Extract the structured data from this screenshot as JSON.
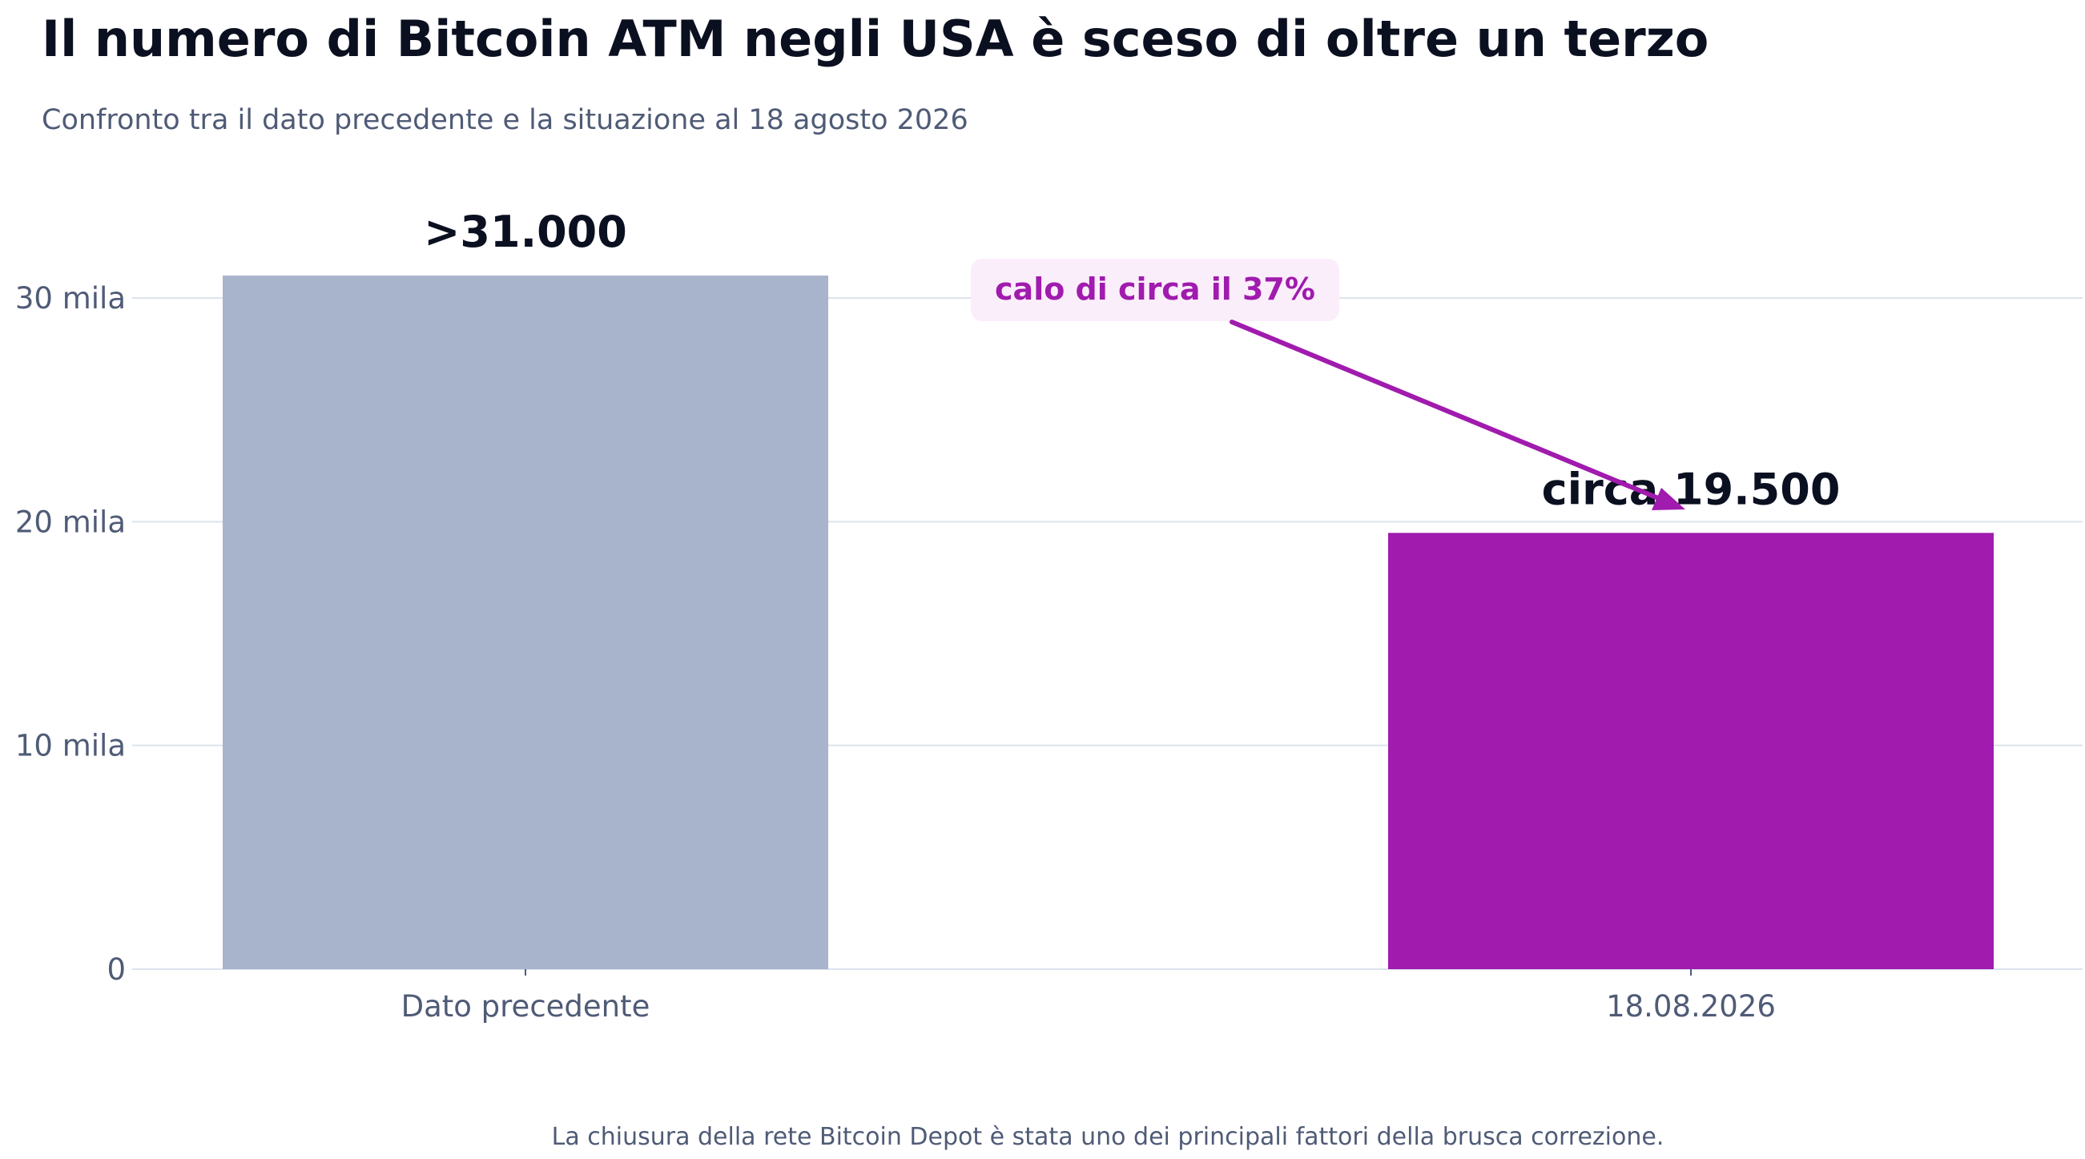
{
  "header": {
    "title": "Il numero di Bitcoin ATM negli USA è sceso di oltre un terzo",
    "subtitle": "Confronto tra il dato precedente e la situazione al 18 agosto 2026"
  },
  "footnote": "La chiusura della rete Bitcoin Depot è stata uno dei principali fattori della brusca correzione.",
  "colors": {
    "previous_bar": "#a8b4cc",
    "current_bar": "#a01bae",
    "annotation_bg": "#fbeefb",
    "annotation": "#a01bae"
  },
  "chart_data": {
    "type": "bar",
    "categories": [
      "Dato precedente",
      "18.08.2026"
    ],
    "values": [
      31000,
      19500
    ],
    "data_labels": [
      ">31.000",
      "circa 19.500"
    ],
    "title": "Il numero di Bitcoin ATM negli USA è sceso di oltre un terzo",
    "subtitle": "Confronto tra il dato precedente e la situazione al 18 agosto 2026",
    "xlabel": "",
    "ylabel": "",
    "ylim": [
      0,
      30000
    ],
    "y_ticks": [
      {
        "value": 0,
        "label": "0"
      },
      {
        "value": 10000,
        "label": "10 mila"
      },
      {
        "value": 20000,
        "label": "20 mila"
      },
      {
        "value": 30000,
        "label": "30 mila"
      }
    ],
    "grid": true,
    "annotation": {
      "text": "calo di circa il 37%",
      "points_to": "18.08.2026"
    }
  }
}
